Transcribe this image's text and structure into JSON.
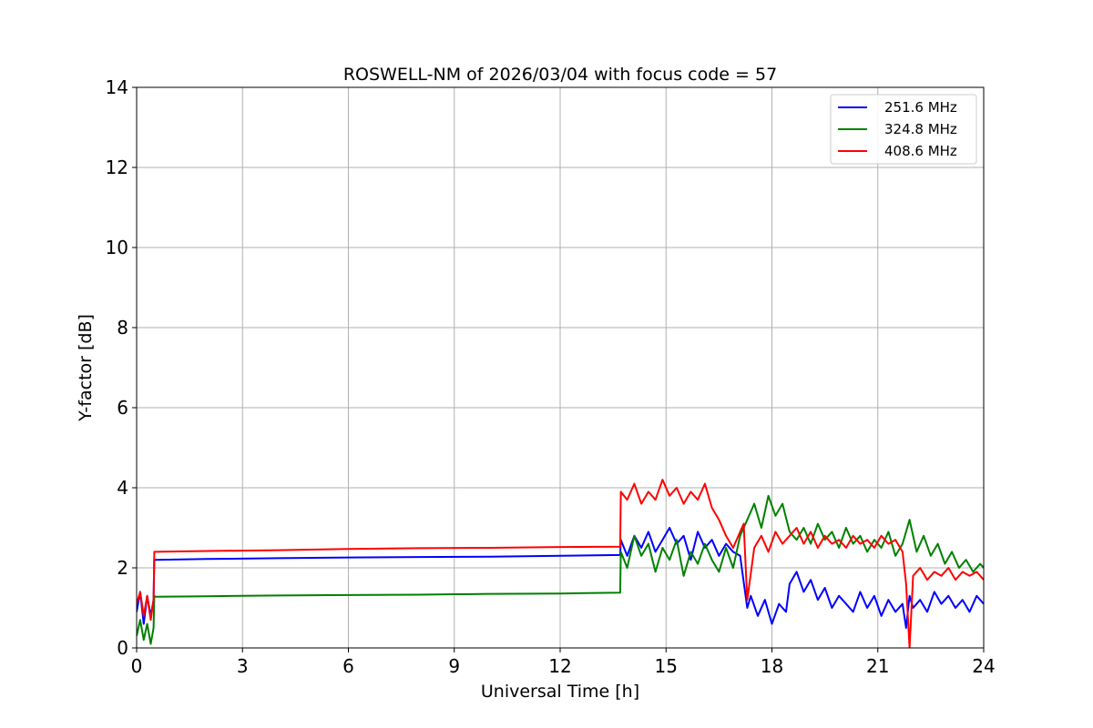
{
  "chart_data": {
    "type": "line",
    "title": "ROSWELL-NM of 2026/03/04 with focus code = 57",
    "xlabel": "Universal Time [h]",
    "ylabel": "Y-factor [dB]",
    "xlim": [
      0,
      24
    ],
    "ylim": [
      0,
      14
    ],
    "xticks": [
      0,
      3,
      6,
      9,
      12,
      15,
      18,
      21,
      24
    ],
    "yticks": [
      0,
      2,
      4,
      6,
      8,
      10,
      12,
      14
    ],
    "grid": true,
    "legend_position": "top-right",
    "series": [
      {
        "name": "251.6 MHz",
        "color": "#0000ff",
        "x": [
          0.0,
          0.1,
          0.2,
          0.3,
          0.4,
          0.48,
          0.5,
          0.52,
          2,
          4,
          6,
          8,
          10,
          12,
          13.7,
          13.72,
          13.9,
          14.1,
          14.3,
          14.5,
          14.7,
          14.9,
          15.1,
          15.3,
          15.5,
          15.7,
          15.9,
          16.1,
          16.3,
          16.5,
          16.7,
          16.9,
          17.1,
          17.3,
          17.4,
          17.6,
          17.8,
          18.0,
          18.2,
          18.4,
          18.5,
          18.7,
          18.9,
          19.1,
          19.3,
          19.5,
          19.7,
          19.9,
          20.1,
          20.3,
          20.5,
          20.7,
          20.9,
          21.1,
          21.3,
          21.5,
          21.7,
          21.8,
          21.9,
          22.0,
          22.2,
          22.4,
          22.6,
          22.8,
          23.0,
          23.2,
          23.4,
          23.6,
          23.8,
          24.0
        ],
        "y": [
          0.9,
          1.4,
          0.6,
          1.3,
          0.8,
          1.2,
          2.2,
          2.2,
          2.22,
          2.24,
          2.26,
          2.27,
          2.28,
          2.3,
          2.32,
          2.7,
          2.3,
          2.8,
          2.5,
          2.9,
          2.4,
          2.7,
          3.0,
          2.6,
          2.8,
          2.2,
          2.9,
          2.5,
          2.7,
          2.3,
          2.6,
          2.4,
          2.3,
          1.0,
          1.3,
          0.8,
          1.2,
          0.6,
          1.1,
          0.9,
          1.6,
          1.9,
          1.4,
          1.7,
          1.2,
          1.5,
          1.0,
          1.3,
          1.1,
          0.9,
          1.4,
          1.0,
          1.3,
          0.8,
          1.2,
          0.9,
          1.1,
          0.5,
          1.3,
          1.0,
          1.2,
          0.9,
          1.4,
          1.1,
          1.3,
          1.0,
          1.2,
          0.9,
          1.3,
          1.1
        ]
      },
      {
        "name": "324.8 MHz",
        "color": "#008000",
        "x": [
          0.0,
          0.1,
          0.2,
          0.3,
          0.4,
          0.48,
          0.5,
          0.52,
          2,
          4,
          6,
          8,
          10,
          12,
          13.7,
          13.72,
          13.9,
          14.1,
          14.3,
          14.5,
          14.7,
          14.9,
          15.1,
          15.3,
          15.5,
          15.7,
          15.9,
          16.1,
          16.3,
          16.5,
          16.7,
          16.9,
          17.1,
          17.3,
          17.5,
          17.7,
          17.9,
          18.1,
          18.3,
          18.5,
          18.7,
          18.9,
          19.1,
          19.3,
          19.5,
          19.7,
          19.9,
          20.1,
          20.3,
          20.5,
          20.7,
          20.9,
          21.1,
          21.3,
          21.5,
          21.7,
          21.9,
          22.1,
          22.3,
          22.5,
          22.7,
          22.9,
          23.1,
          23.3,
          23.5,
          23.7,
          23.9,
          24.0
        ],
        "y": [
          0.3,
          0.7,
          0.2,
          0.6,
          0.1,
          0.5,
          1.3,
          1.28,
          1.29,
          1.31,
          1.32,
          1.33,
          1.35,
          1.36,
          1.38,
          2.4,
          2.0,
          2.8,
          2.3,
          2.6,
          1.9,
          2.5,
          2.2,
          2.7,
          1.8,
          2.4,
          2.1,
          2.6,
          2.2,
          1.9,
          2.5,
          2.0,
          2.8,
          3.2,
          3.6,
          3.0,
          3.8,
          3.3,
          3.6,
          2.9,
          2.7,
          3.0,
          2.6,
          3.1,
          2.7,
          2.9,
          2.5,
          3.0,
          2.6,
          2.8,
          2.4,
          2.7,
          2.5,
          2.9,
          2.3,
          2.6,
          3.2,
          2.4,
          2.8,
          2.3,
          2.6,
          2.1,
          2.4,
          2.0,
          2.2,
          1.9,
          2.1,
          2.0
        ]
      },
      {
        "name": "408.6 MHz",
        "color": "#ff0000",
        "x": [
          0.0,
          0.1,
          0.2,
          0.3,
          0.4,
          0.48,
          0.5,
          0.52,
          2,
          4,
          6,
          8,
          10,
          12,
          13.7,
          13.72,
          13.9,
          14.1,
          14.3,
          14.5,
          14.7,
          14.9,
          15.1,
          15.3,
          15.5,
          15.7,
          15.9,
          16.1,
          16.3,
          16.5,
          16.7,
          16.9,
          17.1,
          17.2,
          17.3,
          17.5,
          17.7,
          17.9,
          18.1,
          18.3,
          18.5,
          18.7,
          18.9,
          19.1,
          19.3,
          19.5,
          19.7,
          19.9,
          20.1,
          20.3,
          20.5,
          20.7,
          20.9,
          21.1,
          21.3,
          21.5,
          21.7,
          21.8,
          21.9,
          22.0,
          22.2,
          22.4,
          22.6,
          22.8,
          23.0,
          23.2,
          23.4,
          23.6,
          23.8,
          24.0
        ],
        "y": [
          1.1,
          1.4,
          0.8,
          1.3,
          0.7,
          1.2,
          2.4,
          2.4,
          2.42,
          2.44,
          2.47,
          2.49,
          2.5,
          2.52,
          2.53,
          3.9,
          3.7,
          4.1,
          3.6,
          3.9,
          3.7,
          4.2,
          3.8,
          4.0,
          3.6,
          3.9,
          3.7,
          4.1,
          3.5,
          3.2,
          2.8,
          2.5,
          2.9,
          3.1,
          1.2,
          2.5,
          2.8,
          2.4,
          2.9,
          2.6,
          2.8,
          3.0,
          2.6,
          2.9,
          2.5,
          2.8,
          2.6,
          2.7,
          2.5,
          2.8,
          2.6,
          2.7,
          2.5,
          2.8,
          2.6,
          2.7,
          2.4,
          1.6,
          0.0,
          1.8,
          2.0,
          1.7,
          1.9,
          1.8,
          2.0,
          1.7,
          1.9,
          1.8,
          1.9,
          1.7
        ]
      }
    ]
  }
}
